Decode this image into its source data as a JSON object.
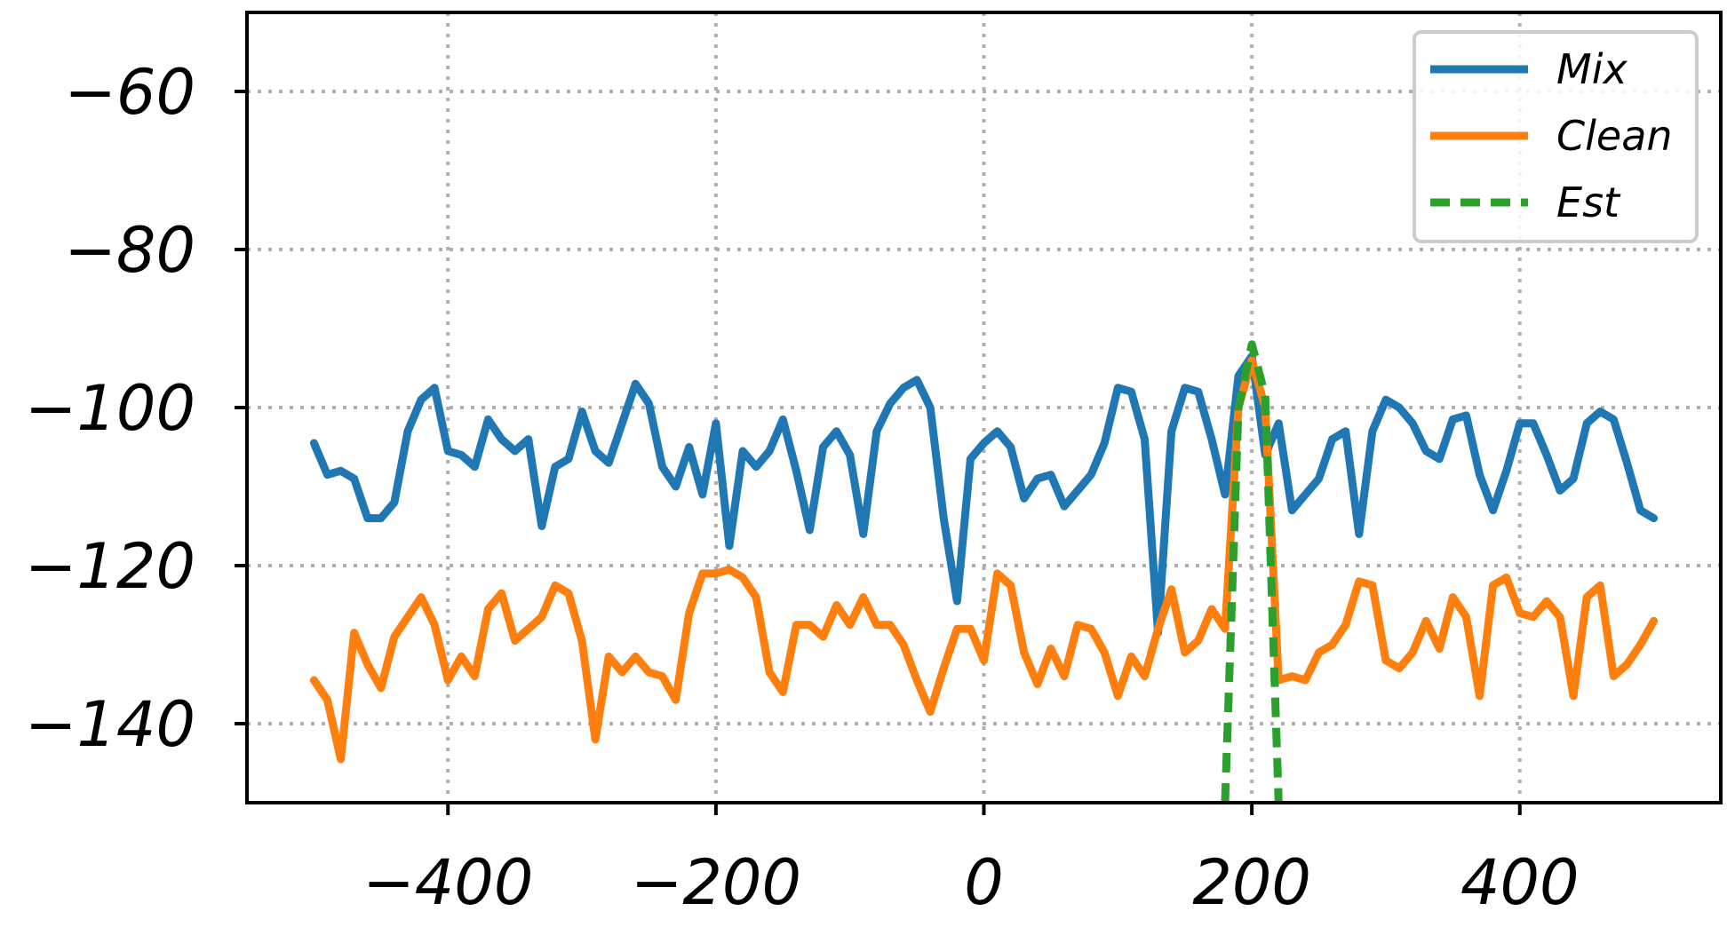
{
  "chart_data": {
    "type": "line",
    "title": "",
    "xlabel": "",
    "ylabel": "",
    "xlim": [
      -550,
      550
    ],
    "ylim": [
      -150,
      -50
    ],
    "xticks": [
      -400,
      -200,
      0,
      200,
      400
    ],
    "yticks": [
      -60,
      -80,
      -100,
      -120,
      -140
    ],
    "xtick_labels": [
      "−400",
      "−200",
      "0",
      "200",
      "400"
    ],
    "ytick_labels": [
      "−60",
      "−80",
      "−100",
      "−120",
      "−140"
    ],
    "grid": true,
    "legend_position": "top-right",
    "series": [
      {
        "name": "Mix",
        "color": "#1f77b4",
        "style": "solid",
        "points": [
          [
            -500,
            -104.5
          ],
          [
            -490,
            -108.5
          ],
          [
            -480,
            -108
          ],
          [
            -470,
            -109
          ],
          [
            -460,
            -114
          ],
          [
            -450,
            -114
          ],
          [
            -440,
            -112
          ],
          [
            -430,
            -103
          ],
          [
            -420,
            -99
          ],
          [
            -410,
            -97.5
          ],
          [
            -400,
            -105.5
          ],
          [
            -390,
            -106
          ],
          [
            -380,
            -107.5
          ],
          [
            -370,
            -101.5
          ],
          [
            -360,
            -104
          ],
          [
            -350,
            -105.5
          ],
          [
            -340,
            -104
          ],
          [
            -330,
            -115
          ],
          [
            -320,
            -107.5
          ],
          [
            -310,
            -106.5
          ],
          [
            -300,
            -100.5
          ],
          [
            -290,
            -105.5
          ],
          [
            -280,
            -107
          ],
          [
            -270,
            -102
          ],
          [
            -260,
            -97
          ],
          [
            -250,
            -99.5
          ],
          [
            -240,
            -107.5
          ],
          [
            -230,
            -110
          ],
          [
            -220,
            -105
          ],
          [
            -210,
            -111
          ],
          [
            -200,
            -102
          ],
          [
            -190,
            -117.5
          ],
          [
            -180,
            -105.5
          ],
          [
            -170,
            -107.5
          ],
          [
            -160,
            -105.5
          ],
          [
            -150,
            -101.5
          ],
          [
            -140,
            -108
          ],
          [
            -130,
            -115.5
          ],
          [
            -120,
            -105
          ],
          [
            -110,
            -103
          ],
          [
            -100,
            -106
          ],
          [
            -90,
            -116
          ],
          [
            -80,
            -103
          ],
          [
            -70,
            -99.5
          ],
          [
            -60,
            -97.5
          ],
          [
            -50,
            -96.5
          ],
          [
            -40,
            -100
          ],
          [
            -30,
            -114
          ],
          [
            -20,
            -124.5
          ],
          [
            -10,
            -106.5
          ],
          [
            0,
            -104.5
          ],
          [
            10,
            -103
          ],
          [
            20,
            -105
          ],
          [
            30,
            -111.5
          ],
          [
            40,
            -109
          ],
          [
            50,
            -108.5
          ],
          [
            60,
            -112.5
          ],
          [
            70,
            -110.5
          ],
          [
            80,
            -108.5
          ],
          [
            90,
            -104.5
          ],
          [
            100,
            -97.5
          ],
          [
            110,
            -98
          ],
          [
            120,
            -104
          ],
          [
            130,
            -128.5
          ],
          [
            140,
            -103
          ],
          [
            150,
            -97.5
          ],
          [
            160,
            -98
          ],
          [
            170,
            -104
          ],
          [
            180,
            -111
          ],
          [
            190,
            -96
          ],
          [
            200,
            -93.5
          ],
          [
            210,
            -106
          ],
          [
            220,
            -102
          ],
          [
            230,
            -113
          ],
          [
            240,
            -111
          ],
          [
            250,
            -109
          ],
          [
            260,
            -104
          ],
          [
            270,
            -103
          ],
          [
            280,
            -116
          ],
          [
            290,
            -103
          ],
          [
            300,
            -99
          ],
          [
            310,
            -100
          ],
          [
            320,
            -102
          ],
          [
            330,
            -105.5
          ],
          [
            340,
            -106.5
          ],
          [
            350,
            -101.5
          ],
          [
            360,
            -101
          ],
          [
            370,
            -108.5
          ],
          [
            380,
            -113
          ],
          [
            390,
            -108
          ],
          [
            400,
            -102
          ],
          [
            410,
            -102
          ],
          [
            420,
            -106
          ],
          [
            430,
            -110.5
          ],
          [
            440,
            -109
          ],
          [
            450,
            -102
          ],
          [
            460,
            -100.5
          ],
          [
            470,
            -101.5
          ],
          [
            480,
            -107
          ],
          [
            490,
            -113
          ],
          [
            500,
            -114
          ]
        ]
      },
      {
        "name": "Clean",
        "color": "#ff7f0e",
        "style": "solid",
        "points": [
          [
            -500,
            -134.5
          ],
          [
            -490,
            -137
          ],
          [
            -480,
            -144.5
          ],
          [
            -470,
            -128.5
          ],
          [
            -460,
            -132.5
          ],
          [
            -450,
            -135.5
          ],
          [
            -440,
            -129
          ],
          [
            -430,
            -126.5
          ],
          [
            -420,
            -124
          ],
          [
            -410,
            -127.5
          ],
          [
            -400,
            -134.5
          ],
          [
            -390,
            -131.5
          ],
          [
            -380,
            -134
          ],
          [
            -370,
            -125.5
          ],
          [
            -360,
            -123.5
          ],
          [
            -350,
            -129.5
          ],
          [
            -340,
            -128
          ],
          [
            -330,
            -126.5
          ],
          [
            -320,
            -122.5
          ],
          [
            -310,
            -123.5
          ],
          [
            -300,
            -129.5
          ],
          [
            -290,
            -142
          ],
          [
            -280,
            -131.5
          ],
          [
            -270,
            -133.5
          ],
          [
            -260,
            -131.5
          ],
          [
            -250,
            -133.5
          ],
          [
            -240,
            -134
          ],
          [
            -230,
            -137
          ],
          [
            -220,
            -126
          ],
          [
            -210,
            -121
          ],
          [
            -200,
            -121
          ],
          [
            -190,
            -120.5
          ],
          [
            -180,
            -121.5
          ],
          [
            -170,
            -124
          ],
          [
            -160,
            -133.5
          ],
          [
            -150,
            -136
          ],
          [
            -140,
            -127.5
          ],
          [
            -130,
            -127.5
          ],
          [
            -120,
            -129
          ],
          [
            -110,
            -125
          ],
          [
            -100,
            -127.5
          ],
          [
            -90,
            -124
          ],
          [
            -80,
            -127.5
          ],
          [
            -70,
            -127.5
          ],
          [
            -60,
            -130
          ],
          [
            -50,
            -134.5
          ],
          [
            -40,
            -138.5
          ],
          [
            -30,
            -133
          ],
          [
            -20,
            -128
          ],
          [
            -10,
            -128
          ],
          [
            0,
            -132
          ],
          [
            10,
            -121
          ],
          [
            20,
            -122.5
          ],
          [
            30,
            -131
          ],
          [
            40,
            -135
          ],
          [
            50,
            -130.5
          ],
          [
            60,
            -134
          ],
          [
            70,
            -127.5
          ],
          [
            80,
            -128
          ],
          [
            90,
            -131
          ],
          [
            100,
            -136.5
          ],
          [
            110,
            -131.5
          ],
          [
            120,
            -134
          ],
          [
            130,
            -128
          ],
          [
            140,
            -123
          ],
          [
            150,
            -131
          ],
          [
            160,
            -129.5
          ],
          [
            170,
            -125.5
          ],
          [
            180,
            -128
          ],
          [
            190,
            -100
          ],
          [
            200,
            -94
          ],
          [
            210,
            -100
          ],
          [
            220,
            -134.5
          ],
          [
            230,
            -134
          ],
          [
            240,
            -134.5
          ],
          [
            250,
            -131
          ],
          [
            260,
            -130
          ],
          [
            270,
            -127.5
          ],
          [
            280,
            -122
          ],
          [
            290,
            -122.5
          ],
          [
            300,
            -132
          ],
          [
            310,
            -133
          ],
          [
            320,
            -131
          ],
          [
            330,
            -127
          ],
          [
            340,
            -130.5
          ],
          [
            350,
            -124
          ],
          [
            360,
            -126.5
          ],
          [
            370,
            -136.5
          ],
          [
            380,
            -122.5
          ],
          [
            390,
            -121.5
          ],
          [
            400,
            -126
          ],
          [
            410,
            -126.5
          ],
          [
            420,
            -124.5
          ],
          [
            430,
            -126.5
          ],
          [
            440,
            -136.5
          ],
          [
            450,
            -124
          ],
          [
            460,
            -122.5
          ],
          [
            470,
            -134
          ],
          [
            480,
            -132.5
          ],
          [
            490,
            -130
          ],
          [
            500,
            -127
          ]
        ]
      },
      {
        "name": "Est",
        "color": "#2ca02c",
        "style": "dashed",
        "points": [
          [
            180,
            -150
          ],
          [
            190,
            -100
          ],
          [
            200,
            -92
          ],
          [
            210,
            -98.5
          ],
          [
            220,
            -150
          ]
        ]
      }
    ]
  }
}
